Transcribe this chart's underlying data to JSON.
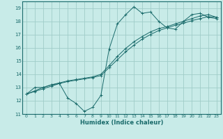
{
  "xlabel": "Humidex (Indice chaleur)",
  "ylabel": "",
  "bg_color": "#c8ebe8",
  "grid_color": "#a0ccc8",
  "line_color": "#1a6b6b",
  "xlim": [
    -0.5,
    23.5
  ],
  "ylim": [
    11,
    19.5
  ],
  "yticks": [
    11,
    12,
    13,
    14,
    15,
    16,
    17,
    18,
    19
  ],
  "xticks": [
    0,
    1,
    2,
    3,
    4,
    5,
    6,
    7,
    8,
    9,
    10,
    11,
    12,
    13,
    14,
    15,
    16,
    17,
    18,
    19,
    20,
    21,
    22,
    23
  ],
  "series1_x": [
    0,
    1,
    2,
    3,
    4,
    5,
    6,
    7,
    8,
    9,
    10,
    11,
    12,
    13,
    14,
    15,
    16,
    17,
    18,
    19,
    20,
    21,
    22,
    23
  ],
  "series1_y": [
    12.5,
    13.0,
    13.0,
    13.2,
    13.3,
    12.2,
    11.8,
    11.2,
    11.5,
    12.4,
    15.9,
    17.8,
    18.5,
    19.1,
    18.6,
    18.7,
    18.0,
    17.5,
    17.4,
    18.0,
    18.5,
    18.6,
    18.3,
    18.2
  ],
  "series2_x": [
    0,
    1,
    2,
    3,
    4,
    5,
    6,
    7,
    8,
    9,
    10,
    11,
    12,
    13,
    14,
    15,
    16,
    17,
    18,
    19,
    20,
    21,
    22,
    23
  ],
  "series2_y": [
    12.5,
    12.7,
    12.9,
    13.1,
    13.3,
    13.45,
    13.55,
    13.65,
    13.75,
    13.9,
    14.5,
    15.1,
    15.7,
    16.2,
    16.65,
    17.0,
    17.3,
    17.5,
    17.7,
    17.85,
    18.05,
    18.2,
    18.35,
    18.3
  ],
  "series3_x": [
    0,
    1,
    2,
    3,
    4,
    5,
    6,
    7,
    8,
    9,
    10,
    11,
    12,
    13,
    14,
    15,
    16,
    17,
    18,
    19,
    20,
    21,
    22,
    23
  ],
  "series3_y": [
    12.5,
    12.75,
    13.0,
    13.2,
    13.35,
    13.5,
    13.6,
    13.7,
    13.8,
    14.0,
    14.65,
    15.35,
    15.95,
    16.45,
    16.85,
    17.2,
    17.45,
    17.6,
    17.8,
    18.0,
    18.2,
    18.4,
    18.5,
    18.3
  ]
}
